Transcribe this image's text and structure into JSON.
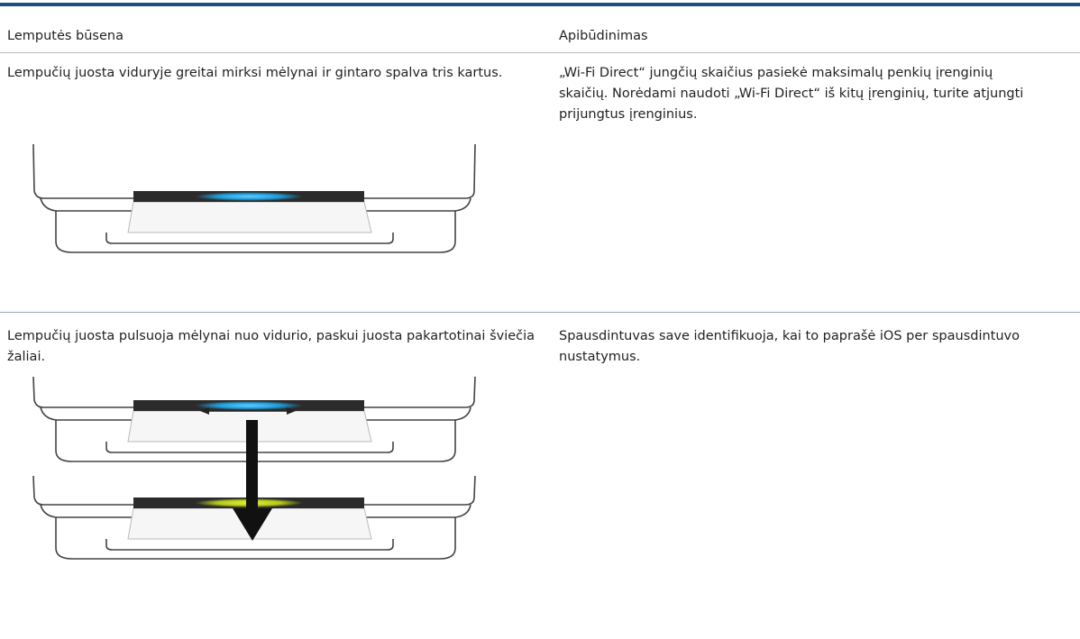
{
  "table": {
    "headers": [
      "Lemputės būsena",
      "Apibūdinimas"
    ],
    "rows": [
      [
        "Lempučių juosta viduryje greitai mirksi mėlynai ir gintaro spalva tris kartus.",
        "„Wi-Fi Direct“ jungčių skaičius pasiekė maksimalų penkių įrenginių skaičių. Norėdami naudoti „Wi-Fi Direct“ iš kitų įrenginių, turite atjungti prijungtus įrenginius."
      ],
      [
        "Lempučių juosta pulsuoja mėlynai nuo vidurio, paskui juosta pakartotinai šviečia žaliai.",
        "Spausdintuvas save identifikuoja, kai to paprašė iOS per spausdintuvo nustatymus."
      ]
    ]
  }
}
